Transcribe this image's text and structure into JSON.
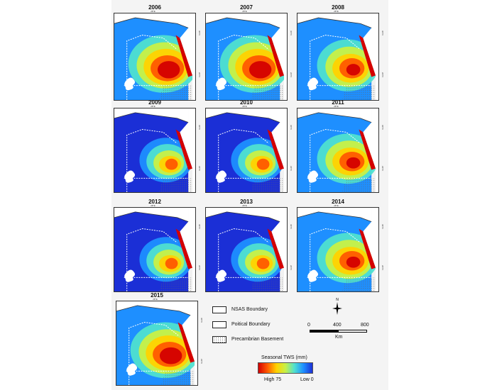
{
  "panels": [
    {
      "year": "2006",
      "pattern": "high"
    },
    {
      "year": "2007",
      "pattern": "high"
    },
    {
      "year": "2008",
      "pattern": "mid"
    },
    {
      "year": "2009",
      "pattern": "low"
    },
    {
      "year": "2010",
      "pattern": "low"
    },
    {
      "year": "2011",
      "pattern": "mid"
    },
    {
      "year": "2012",
      "pattern": "low"
    },
    {
      "year": "2013",
      "pattern": "low"
    },
    {
      "year": "2014",
      "pattern": "mid"
    },
    {
      "year": "2015",
      "pattern": "high"
    }
  ],
  "map_labels": {
    "lon_top": "28°E",
    "lat_north": "30°N",
    "lat_south": "22°N"
  },
  "legend": {
    "nsas_boundary": "NSAS Boundary",
    "political_boundary": "Poitical Boundary",
    "precambrian_basement": "Precambrian Basement"
  },
  "scale": {
    "tick0": "0",
    "tick1": "400",
    "tick2": "800",
    "unit": "Km"
  },
  "north_arrow": "N",
  "colorbar": {
    "title": "Seasonal TWS (mm)",
    "high_label": "High  75",
    "low_label": "Low  0",
    "colors": [
      "#d40000",
      "#ff5a00",
      "#ffd200",
      "#c8f046",
      "#4fe0d0",
      "#1e8fff",
      "#1b2fd6"
    ]
  }
}
